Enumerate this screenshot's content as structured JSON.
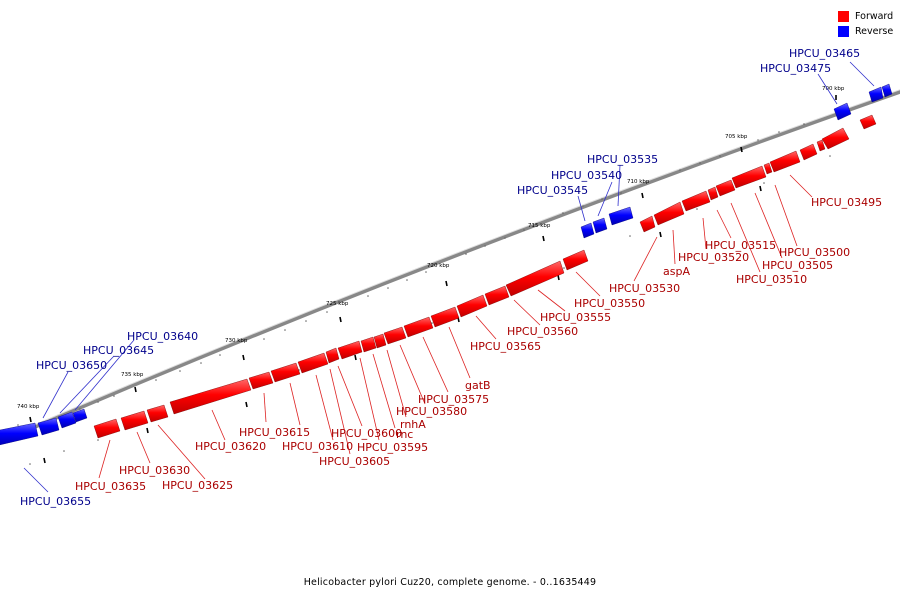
{
  "caption": "Helicobacter pylori Cuz20, complete genome. - 0..1635449",
  "legend": [
    {
      "label": "Forward",
      "color": "#ff0000"
    },
    {
      "label": "Reverse",
      "color": "#0000ff"
    }
  ],
  "scale_ticks": [
    "700 kbp",
    "705 kbp",
    "710 kbp",
    "715 kbp",
    "720 kbp",
    "725 kbp",
    "730 kbp",
    "735 kbp",
    "740 kbp"
  ],
  "genes": {
    "forward_labels": [
      "HPCU_03495",
      "HPCU_03500",
      "HPCU_03505",
      "HPCU_03510",
      "HPCU_03515",
      "HPCU_03520",
      "aspA",
      "HPCU_03530",
      "HPCU_03550",
      "HPCU_03555",
      "HPCU_03560",
      "HPCU_03565",
      "gatB",
      "HPCU_03575",
      "HPCU_03580",
      "rnhA",
      "rnc",
      "HPCU_03595",
      "HPCU_03600",
      "HPCU_03605",
      "HPCU_03610",
      "HPCU_03615",
      "HPCU_03620",
      "HPCU_03625",
      "HPCU_03630",
      "HPCU_03635"
    ],
    "reverse_labels": [
      "HPCU_03465",
      "HPCU_03475",
      "HPCU_03535",
      "HPCU_03540",
      "HPCU_03545",
      "HPCU_03640",
      "HPCU_03645",
      "HPCU_03650",
      "HPCU_03655"
    ]
  },
  "colors": {
    "forward": "#ff0000",
    "reverse": "#0000ff",
    "forward_label": "#aa0000",
    "reverse_label": "#00008b"
  }
}
